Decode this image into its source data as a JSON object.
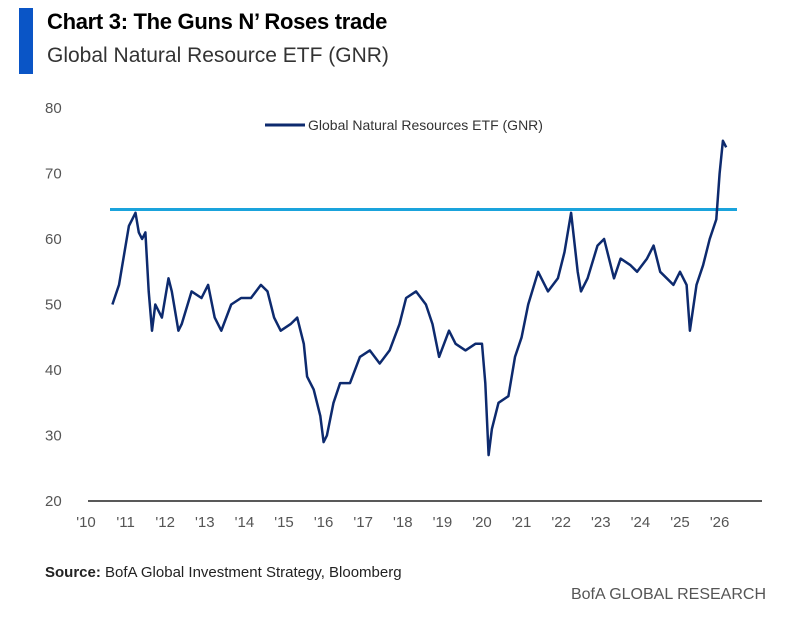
{
  "header": {
    "title": "Chart 3: The Guns N’ Roses trade",
    "subtitle": "Global Natural Resource ETF (GNR)"
  },
  "footer": {
    "source_label": "Source:",
    "source_text": "BofA Global Investment Strategy, Bloomberg",
    "brand": "BofA GLOBAL RESEARCH"
  },
  "chart_data": {
    "type": "line",
    "title": "Chart 3: The Guns N’ Roses trade",
    "subtitle": "Global Natural Resource ETF (GNR)",
    "xlabel": "",
    "ylabel": "",
    "ylim": [
      20,
      80
    ],
    "yticks": [
      "80",
      "70",
      "60",
      "50",
      "40",
      "30",
      "20"
    ],
    "xticks": [
      "'10",
      "'11",
      "'12",
      "'13",
      "'14",
      "'15",
      "'16",
      "'17",
      "'18",
      "'19",
      "'20",
      "'21",
      "'22",
      "'23",
      "'24",
      "'25",
      "'26"
    ],
    "grid": false,
    "legend": "top-center",
    "colors": {
      "series": "#0d2a6e",
      "reference": "#1aa3dc"
    },
    "reference_line": {
      "y": 64.5
    },
    "series": [
      {
        "name": "Global Natural Resources ETF (GNR)",
        "x": [
          "2010-09",
          "2010-11",
          "2010-12",
          "2011-01",
          "2011-02",
          "2011-03",
          "2011-04",
          "2011-05",
          "2011-06",
          "2011-07",
          "2011-08",
          "2011-09",
          "2011-10",
          "2011-12",
          "2012-02",
          "2012-03",
          "2012-05",
          "2012-06",
          "2012-09",
          "2012-12",
          "2013-02",
          "2013-04",
          "2013-06",
          "2013-09",
          "2013-12",
          "2014-03",
          "2014-06",
          "2014-08",
          "2014-10",
          "2014-12",
          "2015-03",
          "2015-05",
          "2015-07",
          "2015-08",
          "2015-10",
          "2015-12",
          "2016-01",
          "2016-02",
          "2016-04",
          "2016-06",
          "2016-09",
          "2016-12",
          "2017-03",
          "2017-06",
          "2017-09",
          "2017-12",
          "2018-02",
          "2018-05",
          "2018-08",
          "2018-10",
          "2018-12",
          "2019-03",
          "2019-05",
          "2019-08",
          "2019-11",
          "2020-01",
          "2020-02",
          "2020-03",
          "2020-04",
          "2020-06",
          "2020-09",
          "2020-11",
          "2021-01",
          "2021-03",
          "2021-06",
          "2021-09",
          "2021-12",
          "2022-02",
          "2022-04",
          "2022-06",
          "2022-07",
          "2022-09",
          "2022-12",
          "2023-02",
          "2023-05",
          "2023-07",
          "2023-10",
          "2023-12",
          "2024-03",
          "2024-05",
          "2024-07",
          "2024-09",
          "2024-11",
          "2025-01",
          "2025-03",
          "2025-04",
          "2025-06",
          "2025-08",
          "2025-10",
          "2025-12",
          "2026-01",
          "2026-02",
          "2026-03"
        ],
        "values": [
          50,
          53,
          56,
          59,
          62,
          63,
          64,
          61,
          60,
          61,
          52,
          46,
          50,
          48,
          54,
          52,
          46,
          47,
          52,
          51,
          53,
          48,
          46,
          50,
          51,
          51,
          53,
          52,
          48,
          46,
          47,
          48,
          44,
          39,
          37,
          33,
          29,
          30,
          35,
          38,
          38,
          42,
          43,
          41,
          43,
          47,
          51,
          52,
          50,
          47,
          42,
          46,
          44,
          43,
          44,
          44,
          38,
          27,
          31,
          35,
          36,
          42,
          45,
          50,
          55,
          52,
          54,
          58,
          64,
          55,
          52,
          54,
          59,
          60,
          54,
          57,
          56,
          55,
          57,
          59,
          55,
          54,
          53,
          55,
          53,
          46,
          53,
          56,
          60,
          63,
          70,
          75,
          74
        ]
      }
    ]
  }
}
